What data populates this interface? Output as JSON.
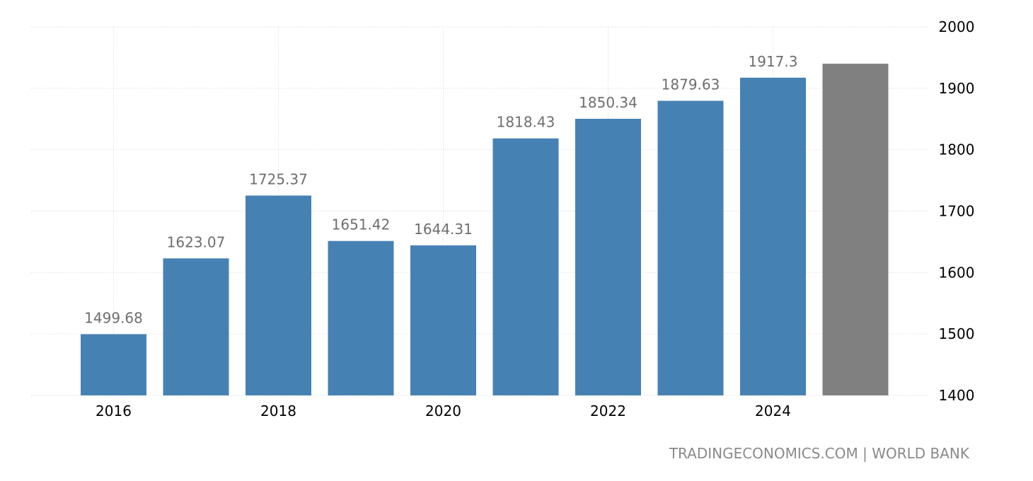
{
  "chart_data": {
    "type": "bar",
    "x": [
      2016,
      2017,
      2018,
      2019,
      2020,
      2021,
      2022,
      2023,
      2024,
      2025
    ],
    "values": [
      1499.68,
      1623.07,
      1725.37,
      1651.42,
      1644.31,
      1818.43,
      1850.34,
      1879.63,
      1917.3,
      1940
    ],
    "data_labels": [
      "1499.68",
      "1623.07",
      "1725.37",
      "1651.42",
      "1644.31",
      "1818.43",
      "1850.34",
      "1879.63",
      "1917.3",
      ""
    ],
    "x_tick_labels": [
      "2016",
      "2018",
      "2020",
      "2022",
      "2024"
    ],
    "y_ticks": [
      1400,
      1500,
      1600,
      1700,
      1800,
      1900,
      2000
    ],
    "ylim": [
      1400,
      2000
    ],
    "y_axis_side": "right",
    "grid": true,
    "title": "",
    "xlabel": "",
    "ylabel": "",
    "colors": {
      "bar": "#4681b4",
      "forecast_bar": "#808080",
      "data_label": "#6e6e6e",
      "grid": "#d9d9d9"
    }
  },
  "source": "TRADINGECONOMICS.COM | WORLD BANK"
}
